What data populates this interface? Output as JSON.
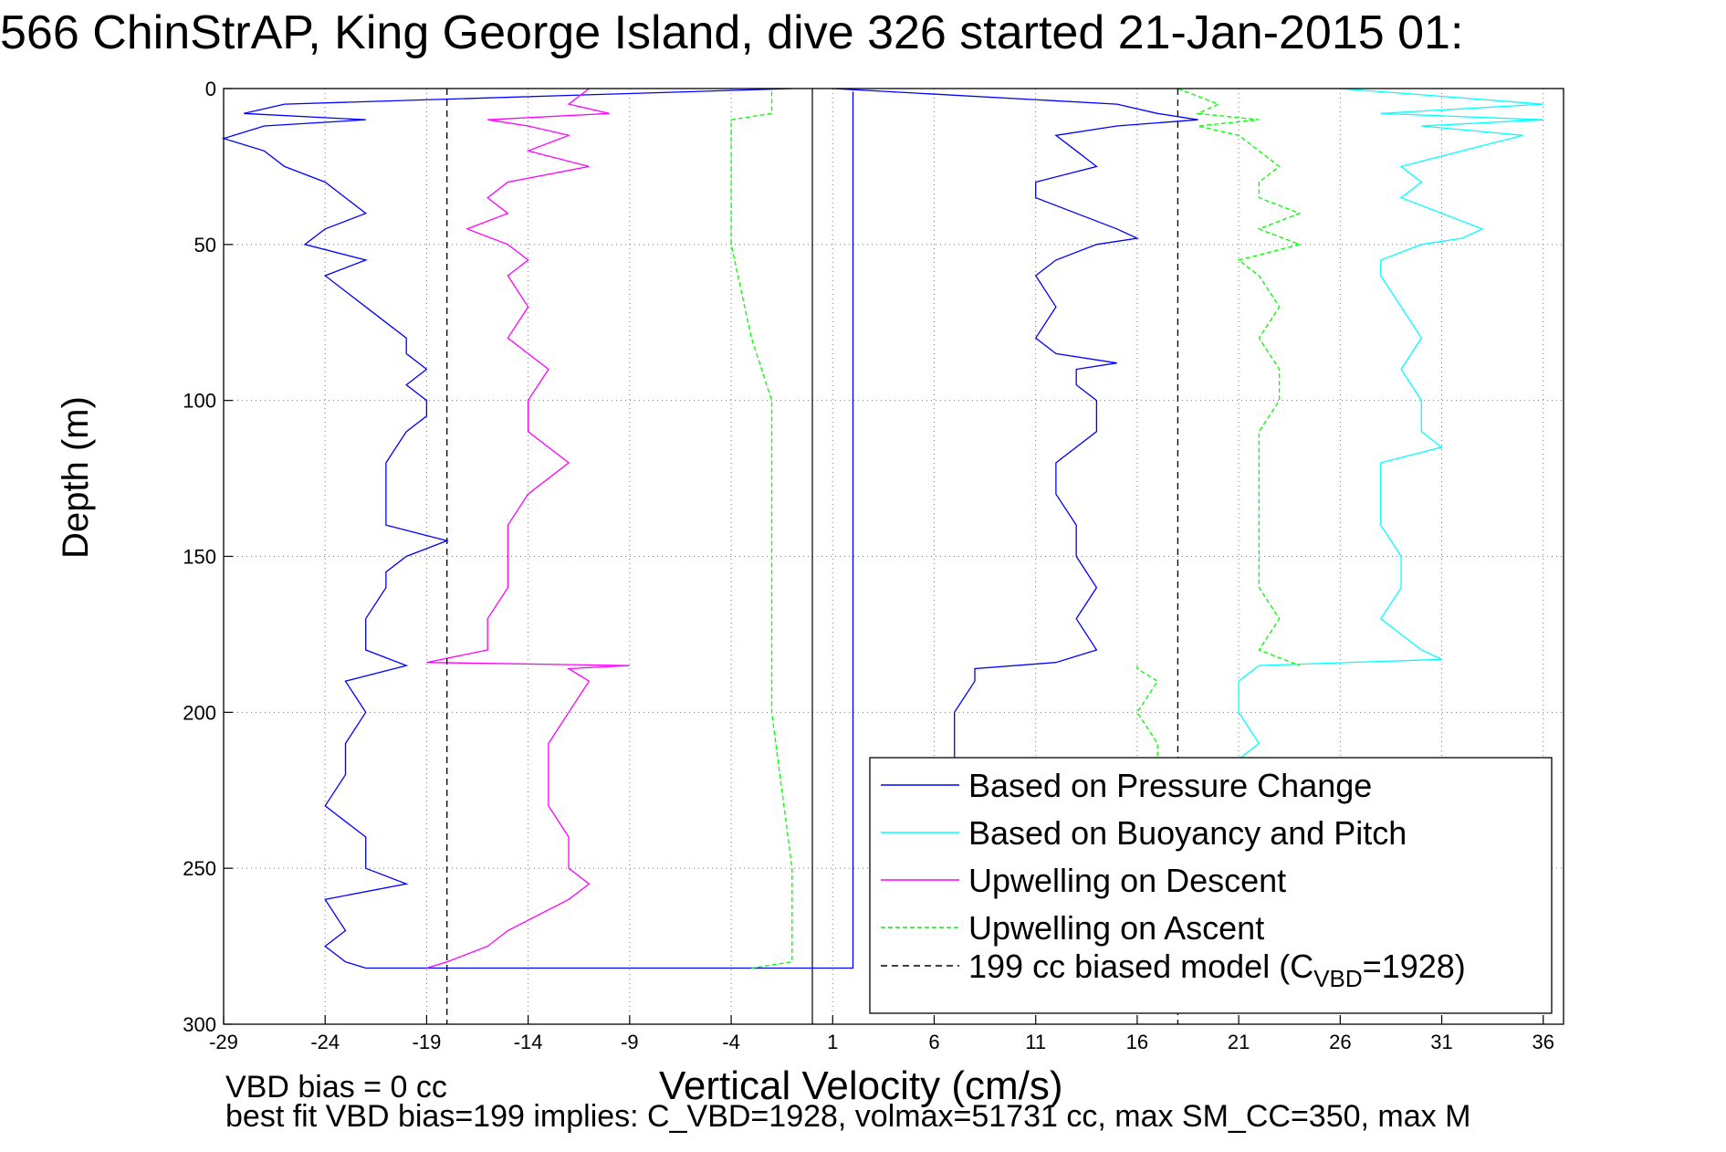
{
  "title": "566 ChinStrAP, King George Island, dive 326 started 21-Jan-2015 01:",
  "footnotes": {
    "line1": "VBD bias = 0 cc",
    "line2": "best fit VBD bias=199 implies: C_VBD=1928, volmax=51731 cc, max SM_CC=350, max M"
  },
  "chart_data": {
    "type": "line",
    "xlabel": "Vertical Velocity (cm/s)",
    "ylabel": "Depth (m)",
    "xlim": [
      -29,
      37
    ],
    "ylim": [
      300,
      0
    ],
    "xticks": [
      -29,
      -24,
      -19,
      -14,
      -9,
      -4,
      1,
      6,
      11,
      16,
      21,
      26,
      31,
      36
    ],
    "yticks": [
      0,
      50,
      100,
      150,
      200,
      250,
      300
    ],
    "grid": true,
    "grid_style": "dotted",
    "legend_position": "bottom-right",
    "colors": {
      "pressure": "#0000ff",
      "buoyancy": "#00ffff",
      "descent": "#ff00ff",
      "ascent": "#00ff00",
      "model": "#000000"
    },
    "series": [
      {
        "name": "Based on Pressure Change",
        "key": "pressure",
        "segments": [
          {
            "depth": [
              0,
              5,
              8,
              10,
              12,
              16,
              20,
              25,
              30,
              35,
              40,
              45,
              50,
              55,
              60,
              65,
              70,
              75,
              80,
              85,
              90,
              95,
              100,
              105,
              110,
              120,
              130,
              140,
              145,
              150,
              155,
              160,
              170,
              180,
              185,
              190,
              200,
              210,
              220,
              230,
              240,
              250,
              255,
              260,
              270,
              275,
              280,
              282
            ],
            "values": [
              -1,
              -26,
              -28,
              -22,
              -27,
              -29,
              -27,
              -26,
              -24,
              -23,
              -22,
              -24,
              -25,
              -22,
              -24,
              -23,
              -22,
              -21,
              -20,
              -20,
              -19,
              -20,
              -19,
              -19,
              -20,
              -21,
              -21,
              -21,
              -18,
              -20,
              -21,
              -21,
              -22,
              -22,
              -20,
              -23,
              -22,
              -23,
              -23,
              -24,
              -22,
              -22,
              -20,
              -24,
              -23,
              -24,
              -23,
              -22
            ]
          },
          {
            "depth": [
              282,
              282,
              1
            ],
            "values": [
              -22,
              2,
              2
            ]
          },
          {
            "depth": [
              0,
              5,
              8,
              10,
              12,
              15,
              20,
              25,
              30,
              35,
              40,
              45,
              48,
              50,
              55,
              60,
              70,
              80,
              85,
              88,
              90,
              95,
              100,
              110,
              120,
              130,
              140,
              150,
              160,
              170,
              180,
              184,
              186,
              190,
              200,
              210,
              215
            ],
            "values": [
              1,
              15,
              17,
              19,
              15,
              12,
              13,
              14,
              11,
              11,
              13,
              15,
              16,
              14,
              12,
              11,
              12,
              11,
              12,
              15,
              13,
              13,
              14,
              14,
              12,
              12,
              13,
              13,
              14,
              13,
              14,
              12,
              8,
              8,
              7,
              7,
              7
            ]
          }
        ]
      },
      {
        "name": "Based on Buoyancy and Pitch",
        "key": "buoyancy",
        "segments": [
          {
            "depth": [
              0,
              5,
              8,
              10,
              12,
              15,
              20,
              25,
              30,
              35,
              40,
              45,
              48,
              50,
              55,
              60,
              70,
              80,
              90,
              100,
              110,
              115,
              120,
              130,
              140,
              150,
              160,
              170,
              180,
              183,
              185,
              190,
              200,
              210,
              215
            ],
            "values": [
              26,
              36,
              28,
              36,
              30,
              35,
              32,
              29,
              30,
              29,
              31,
              33,
              32,
              30,
              28,
              28,
              29,
              30,
              29,
              30,
              30,
              31,
              28,
              28,
              28,
              29,
              29,
              28,
              30,
              31,
              22,
              21,
              21,
              22,
              21
            ]
          }
        ]
      },
      {
        "name": "Upwelling on Descent",
        "key": "descent",
        "segments": [
          {
            "depth": [
              0,
              5,
              8,
              10,
              12,
              15,
              20,
              25,
              30,
              35,
              40,
              45,
              50,
              55,
              60,
              70,
              80,
              90,
              100,
              110,
              120,
              130,
              140,
              150,
              160,
              170,
              180,
              184,
              185,
              186,
              190,
              200,
              210,
              220,
              230,
              240,
              250,
              255,
              260,
              270,
              275,
              280,
              282
            ],
            "values": [
              -11,
              -12,
              -10,
              -16,
              -14,
              -12,
              -14,
              -11,
              -15,
              -16,
              -15,
              -17,
              -15,
              -14,
              -15,
              -14,
              -15,
              -13,
              -14,
              -14,
              -12,
              -14,
              -15,
              -15,
              -15,
              -16,
              -16,
              -19,
              -9,
              -12,
              -11,
              -12,
              -13,
              -13,
              -13,
              -12,
              -12,
              -11,
              -12,
              -15,
              -16,
              -18,
              -19
            ]
          }
        ]
      },
      {
        "name": "Upwelling on Ascent",
        "key": "ascent",
        "segments": [
          {
            "depth": [
              0,
              5,
              8,
              10,
              12,
              15,
              20,
              25,
              30,
              35,
              40,
              45,
              50,
              55,
              60,
              70,
              80,
              90,
              100,
              110,
              120,
              130,
              140,
              150,
              160,
              170,
              180,
              185
            ],
            "values": [
              18,
              20,
              19,
              22,
              19,
              21,
              22,
              23,
              22,
              22,
              24,
              22,
              24,
              21,
              22,
              23,
              22,
              23,
              23,
              22,
              22,
              22,
              22,
              22,
              22,
              23,
              22,
              24
            ]
          },
          {
            "depth": [
              185,
              186,
              190,
              200,
              210,
              215
            ],
            "values": [
              16,
              16,
              17,
              16,
              17,
              17
            ]
          },
          {
            "depth": [
              1,
              8,
              10,
              20,
              50,
              80,
              100,
              150,
              200,
              250,
              280,
              282
            ],
            "values": [
              -2,
              -2,
              -4,
              -4,
              -4,
              -3,
              -2,
              -2,
              -2,
              -1,
              -1,
              -3
            ]
          }
        ]
      },
      {
        "name": "199 cc biased model (C_VBD=1928)",
        "legend_text": "199 cc biased model (C",
        "legend_sub": "VBD",
        "legend_tail": "=1928)",
        "key": "model",
        "style": "dashed",
        "segments": [
          {
            "depth": [
              0,
              300
            ],
            "values": [
              -18,
              -18
            ]
          },
          {
            "depth": [
              0,
              300
            ],
            "values": [
              18,
              18
            ]
          }
        ]
      }
    ],
    "reference_line": {
      "x": 0,
      "style": "solid"
    }
  }
}
